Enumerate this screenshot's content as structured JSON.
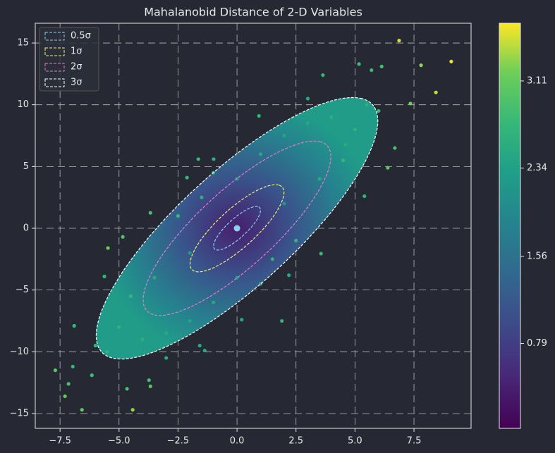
{
  "chart_data": {
    "type": "scatter",
    "title": "Mahalanobid Distance of 2-D Variables",
    "colormap": "viridis",
    "points": {
      "x": [
        6.87,
        9.08,
        7.8,
        8.43,
        7.35,
        6.39,
        6.69,
        5.4,
        3.56,
        2.2,
        0.2,
        -1.37,
        -1.58,
        -4.42,
        -6.57,
        -7.7,
        -7.29,
        -7.14,
        -6.96,
        -6.9,
        -5.47,
        -4.84,
        -5.62,
        -3.67,
        -2.12,
        -1.64,
        -0.99,
        0.93,
        3.64,
        5.17,
        5.7,
        6.13,
        -3.67,
        -4.66,
        -6.15,
        -3.73,
        4.6,
        1.9,
        4.0,
        -4.0,
        3.0,
        -3.0,
        2.0,
        -2.0,
        5.0,
        -5.0,
        4.5,
        -4.5,
        1.0,
        -1.0,
        3.5,
        -3.5,
        0.0,
        0.0,
        2.0,
        -2.0,
        -1.5,
        1.5,
        5.5,
        -5.5,
        3.0,
        -3.0,
        6.0,
        -6.0,
        -2.5,
        2.5,
        -1.0,
        1.0
      ],
      "y": [
        15.2,
        13.5,
        13.2,
        11.0,
        10.1,
        4.9,
        6.5,
        2.6,
        -2.05,
        -3.8,
        -7.4,
        -9.9,
        -9.5,
        -14.7,
        -14.7,
        -11.5,
        -13.6,
        -12.6,
        -11.2,
        -7.9,
        -1.6,
        -0.7,
        -3.9,
        1.25,
        4.1,
        5.6,
        5.6,
        9.1,
        12.4,
        13.3,
        12.8,
        13.1,
        -12.8,
        -13.0,
        -11.9,
        -12.3,
        6.8,
        -7.5,
        9.0,
        -9.0,
        8.5,
        -8.5,
        7.5,
        -7.5,
        8.0,
        -8.0,
        5.5,
        -5.5,
        6.0,
        -6.0,
        4.0,
        -4.0,
        4.0,
        -4.0,
        2.0,
        -2.0,
        2.5,
        -2.5,
        10.0,
        -10.0,
        10.5,
        -10.5,
        9.5,
        -9.5,
        1.0,
        -1.0,
        4.5,
        -4.5
      ],
      "distance": [
        3.5,
        3.55,
        3.3,
        3.45,
        3.2,
        3.05,
        2.9,
        2.7,
        2.75,
        2.5,
        2.45,
        2.5,
        2.5,
        3.3,
        3.05,
        3.0,
        3.1,
        2.9,
        2.7,
        2.75,
        3.15,
        2.95,
        2.7,
        2.9,
        2.75,
        2.75,
        2.6,
        2.65,
        2.7,
        2.8,
        2.75,
        2.85,
        3.0,
        2.9,
        2.8,
        2.8,
        2.5,
        2.65,
        2.56,
        2.56,
        2.45,
        2.45,
        2.4,
        2.4,
        2.6,
        2.6,
        2.7,
        2.7,
        2.45,
        2.45,
        2.5,
        2.5,
        2.3,
        2.3,
        2.2,
        2.2,
        2.6,
        2.6,
        2.6,
        2.6,
        2.5,
        2.5,
        2.75,
        2.75,
        2.7,
        2.7,
        2.55,
        2.55
      ]
    },
    "center": [
      0,
      0
    ],
    "ellipses": [
      {
        "name": "0.5σ",
        "color": "#8ecfec",
        "width": 3.92,
        "height": 1.02,
        "angle": 63.2
      },
      {
        "name": "1σ",
        "color": "#f0f07a",
        "width": 7.84,
        "height": 2.05,
        "angle": 63.2
      },
      {
        "name": "2σ",
        "color": "#e07ec8",
        "width": 15.68,
        "height": 4.09,
        "angle": 63.2
      },
      {
        "name": "3σ",
        "color": "#ffffff",
        "width": 23.52,
        "height": 6.14,
        "angle": 63.2
      }
    ],
    "xlim": [
      -8.55,
      9.92
    ],
    "ylim": [
      -16.2,
      16.6
    ],
    "xticks": [
      {
        "value": -7.5,
        "label": "−7.5"
      },
      {
        "value": -5,
        "label": "−5.0"
      },
      {
        "value": -2.5,
        "label": "−2.5"
      },
      {
        "value": 0,
        "label": "0.0"
      },
      2.5,
      {
        "value": 5,
        "label": "5.0"
      },
      7.5
    ],
    "yticks": [
      {
        "value": -15,
        "label": "−15"
      },
      {
        "value": -10,
        "label": "−10"
      },
      {
        "value": -5,
        "label": "−5"
      },
      0,
      5,
      10,
      15
    ],
    "clim": [
      0.04,
      3.62
    ],
    "cticks": [
      0.79,
      1.56,
      2.34,
      3.11
    ],
    "grid": true,
    "legend": "upper left"
  }
}
